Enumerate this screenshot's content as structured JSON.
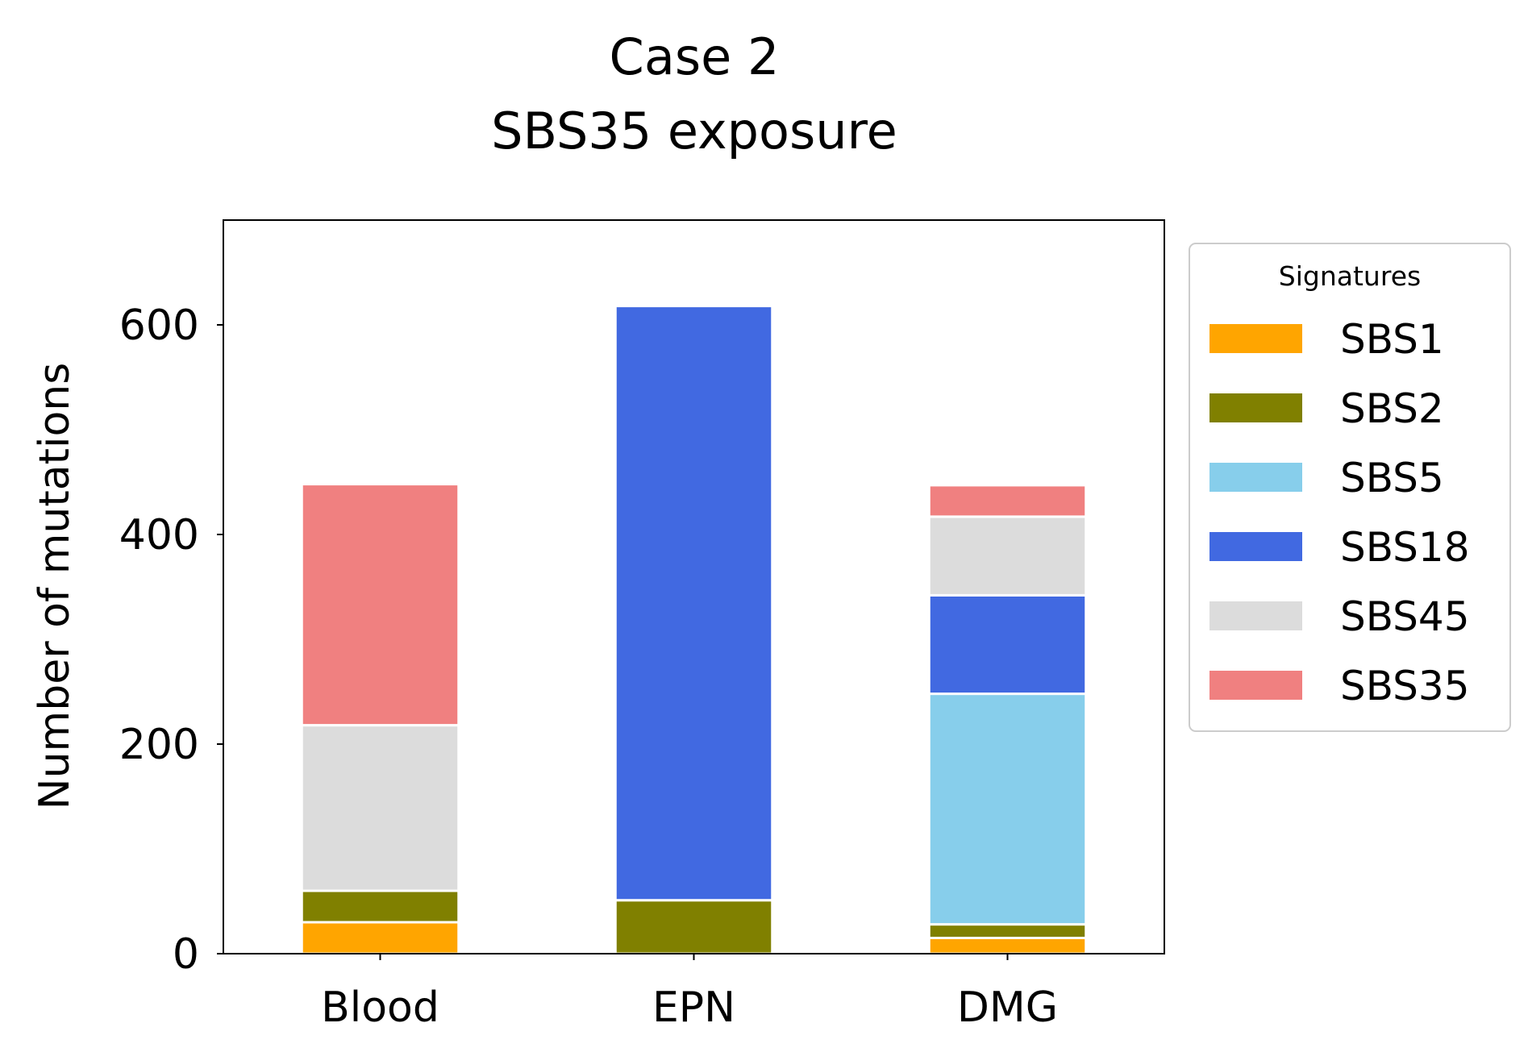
{
  "chart_data": {
    "type": "bar",
    "stacked": true,
    "title_lines": [
      "Case 2",
      "SBS35 exposure"
    ],
    "xlabel": "",
    "ylabel": "Number of mutations",
    "ylim": [
      0,
      700
    ],
    "yticks": [
      0,
      200,
      400,
      600
    ],
    "categories": [
      "Blood",
      "EPN",
      "DMG"
    ],
    "series": [
      {
        "name": "SBS1",
        "color": "#FFA500",
        "values": [
          30,
          0,
          15
        ]
      },
      {
        "name": "SBS2",
        "color": "#808000",
        "values": [
          30,
          51,
          13
        ]
      },
      {
        "name": "SBS5",
        "color": "#87CEEB",
        "values": [
          0,
          0,
          220
        ]
      },
      {
        "name": "SBS18",
        "color": "#4169E1",
        "values": [
          0,
          567,
          94
        ]
      },
      {
        "name": "SBS45",
        "color": "#DCDCDC",
        "values": [
          158,
          0,
          75
        ]
      },
      {
        "name": "SBS35",
        "color": "#F08080",
        "values": [
          230,
          0,
          30
        ]
      }
    ],
    "legend": {
      "title": "Signatures",
      "position": "outside-right-top"
    },
    "grid": false
  }
}
